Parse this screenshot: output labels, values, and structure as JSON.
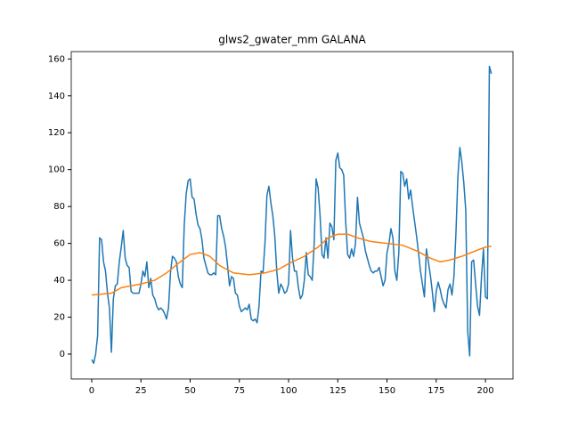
{
  "chart_data": {
    "type": "line",
    "title": "glws2_gwater_mm GALANA",
    "xlim": [
      -10.4,
      214
    ],
    "ylim": [
      -13.5,
      164
    ],
    "xticks": [
      0,
      25,
      50,
      75,
      100,
      125,
      150,
      175,
      200
    ],
    "yticks": [
      0,
      20,
      40,
      60,
      80,
      100,
      120,
      140,
      160
    ],
    "series": [
      {
        "color": "#1f77b4",
        "x": [
          0,
          1,
          2,
          3,
          4,
          5,
          6,
          7,
          8,
          9,
          10,
          11,
          12,
          13,
          14,
          15,
          16,
          17,
          18,
          19,
          20,
          21,
          22,
          23,
          24,
          25,
          26,
          27,
          28,
          29,
          30,
          31,
          32,
          33,
          34,
          35,
          36,
          37,
          38,
          39,
          40,
          41,
          42,
          43,
          44,
          45,
          46,
          47,
          48,
          49,
          50,
          51,
          52,
          53,
          54,
          55,
          56,
          57,
          58,
          59,
          60,
          61,
          62,
          63,
          64,
          65,
          66,
          67,
          68,
          69,
          70,
          71,
          72,
          73,
          74,
          75,
          76,
          77,
          78,
          79,
          80,
          81,
          82,
          83,
          84,
          85,
          86,
          87,
          88,
          89,
          90,
          91,
          92,
          93,
          94,
          95,
          96,
          97,
          98,
          99,
          100,
          101,
          102,
          103,
          104,
          105,
          106,
          107,
          108,
          109,
          110,
          111,
          112,
          113,
          114,
          115,
          116,
          117,
          118,
          119,
          120,
          121,
          122,
          123,
          124,
          125,
          126,
          127,
          128,
          129,
          130,
          131,
          132,
          133,
          134,
          135,
          136,
          137,
          138,
          139,
          140,
          141,
          142,
          143,
          144,
          145,
          146,
          147,
          148,
          149,
          150,
          151,
          152,
          153,
          154,
          155,
          156,
          157,
          158,
          159,
          160,
          161,
          162,
          163,
          164,
          165,
          166,
          167,
          168,
          169,
          170,
          171,
          172,
          173,
          174,
          175,
          176,
          177,
          178,
          179,
          180,
          181,
          182,
          183,
          184,
          185,
          186,
          187,
          188,
          189,
          190,
          191,
          192,
          193,
          194,
          195,
          196,
          197,
          198,
          199,
          200,
          201,
          202,
          203
        ],
        "values": [
          -3,
          -5,
          0,
          10,
          63,
          62,
          50,
          45,
          33,
          25,
          1,
          30,
          37,
          38,
          50,
          58,
          67,
          52,
          48,
          47,
          34,
          33,
          33,
          33,
          33,
          38,
          45,
          42,
          50,
          36,
          41,
          32,
          30,
          26,
          24,
          25,
          24,
          22,
          19,
          25,
          44,
          53,
          52,
          50,
          42,
          38,
          36,
          70,
          87,
          94,
          95,
          85,
          84,
          76,
          70,
          68,
          62,
          52,
          48,
          44,
          43,
          43,
          44,
          43,
          75,
          75,
          68,
          64,
          58,
          48,
          37,
          42,
          41,
          33,
          32,
          26,
          23,
          24,
          25,
          24,
          27,
          19,
          18,
          19,
          17,
          26,
          45,
          44,
          60,
          86,
          91,
          82,
          75,
          64,
          45,
          33,
          38,
          36,
          33,
          34,
          38,
          67,
          52,
          45,
          45,
          36,
          30,
          32,
          40,
          55,
          43,
          42,
          40,
          60,
          95,
          90,
          75,
          54,
          52,
          63,
          52,
          71,
          69,
          62,
          105,
          109,
          101,
          100,
          97,
          72,
          54,
          52,
          57,
          53,
          60,
          85,
          71,
          67,
          63,
          56,
          52,
          48,
          45,
          44,
          45,
          45,
          47,
          42,
          37,
          40,
          55,
          60,
          68,
          63,
          45,
          40,
          55,
          99,
          98,
          91,
          95,
          84,
          89,
          80,
          72,
          64,
          55,
          45,
          38,
          31,
          57,
          50,
          43,
          34,
          23,
          34,
          39,
          35,
          30,
          27,
          25,
          35,
          38,
          32,
          42,
          65,
          96,
          112,
          104,
          93,
          78,
          12,
          -1,
          50,
          51,
          38,
          26,
          21,
          42,
          57,
          31,
          30,
          156,
          152
        ]
      },
      {
        "color": "#ff7f0e",
        "x": [
          0,
          10,
          15,
          25,
          32,
          38,
          45,
          50,
          55,
          60,
          65,
          72,
          80,
          88,
          95,
          100,
          108,
          115,
          120,
          125,
          130,
          135,
          142,
          150,
          158,
          165,
          172,
          177,
          182,
          188,
          195,
          200,
          203
        ],
        "values": [
          32,
          33,
          36,
          38,
          40,
          44,
          50,
          54,
          55,
          53,
          48,
          44,
          43,
          44,
          46,
          49,
          53,
          58,
          63,
          65,
          65,
          63,
          61,
          60,
          59,
          56,
          52,
          50,
          51,
          53,
          56,
          58,
          58.5
        ]
      }
    ]
  }
}
